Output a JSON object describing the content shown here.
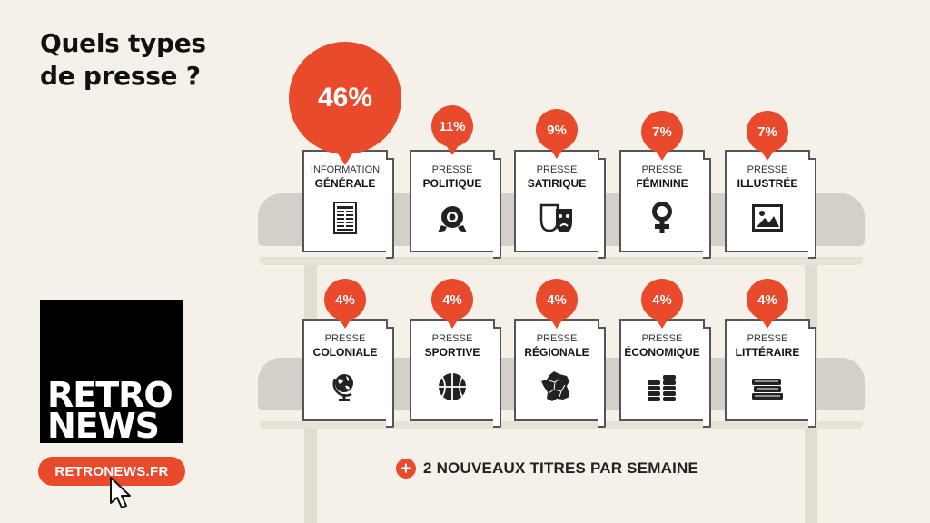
{
  "title": {
    "line1": "Quels types",
    "line2": "de presse ?"
  },
  "accent_color": "#e84a2b",
  "row1": [
    {
      "pct": "46%",
      "line1": "INFORMATION",
      "line2": "GÉNÉRALE",
      "icon": "newspaper-icon"
    },
    {
      "pct": "11%",
      "line1": "PRESSE",
      "line2": "POLITIQUE",
      "icon": "rosette-icon"
    },
    {
      "pct": "9%",
      "line1": "PRESSE",
      "line2": "SATIRIQUE",
      "icon": "theater-masks-icon"
    },
    {
      "pct": "7%",
      "line1": "PRESSE",
      "line2": "FÉMININE",
      "icon": "female-symbol-icon"
    },
    {
      "pct": "7%",
      "line1": "PRESSE",
      "line2": "ILLUSTRÉE",
      "icon": "picture-icon"
    }
  ],
  "row2": [
    {
      "pct": "4%",
      "line1": "PRESSE",
      "line2": "COLONIALE",
      "icon": "globe-icon"
    },
    {
      "pct": "4%",
      "line1": "PRESSE",
      "line2": "SPORTIVE",
      "icon": "basketball-icon"
    },
    {
      "pct": "4%",
      "line1": "PRESSE",
      "line2": "RÉGIONALE",
      "icon": "france-map-icon"
    },
    {
      "pct": "4%",
      "line1": "PRESSE",
      "line2": "ÉCONOMIQUE",
      "icon": "coins-icon"
    },
    {
      "pct": "4%",
      "line1": "PRESSE",
      "line2": "LITTÉRAIRE",
      "icon": "books-icon"
    }
  ],
  "logo": {
    "line1": "RETRO",
    "line2": "NEWS"
  },
  "site_button": "RETRONEWS.FR",
  "footer_note": "2 NOUVEAUX TITRES PAR SEMAINE"
}
